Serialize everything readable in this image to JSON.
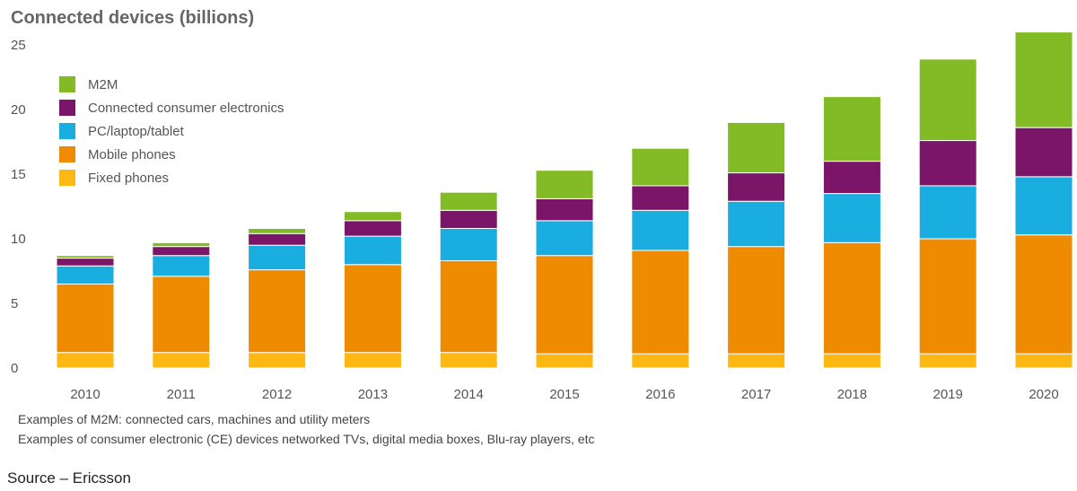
{
  "chart_data": {
    "type": "bar",
    "stacked": true,
    "title": "Connected devices (billions)",
    "xlabel": "",
    "ylabel": "",
    "ylim": [
      0,
      25
    ],
    "yticks": [
      0,
      5,
      10,
      15,
      20,
      25
    ],
    "grid": false,
    "legend_position": "top-left",
    "categories": [
      "2010",
      "2011",
      "2012",
      "2013",
      "2014",
      "2015",
      "2016",
      "2017",
      "2018",
      "2019",
      "2020"
    ],
    "series": [
      {
        "name": "Fixed phones",
        "color": "#fdb813",
        "values": [
          1.2,
          1.2,
          1.2,
          1.2,
          1.2,
          1.1,
          1.1,
          1.1,
          1.1,
          1.1,
          1.1
        ]
      },
      {
        "name": "Mobile phones",
        "color": "#ef8b00",
        "values": [
          5.3,
          5.9,
          6.4,
          6.8,
          7.1,
          7.6,
          8.0,
          8.3,
          8.6,
          8.9,
          9.2
        ]
      },
      {
        "name": "PC/laptop/tablet",
        "color": "#1aaee0",
        "values": [
          1.4,
          1.6,
          1.9,
          2.2,
          2.5,
          2.7,
          3.1,
          3.5,
          3.8,
          4.1,
          4.5
        ]
      },
      {
        "name": "Connected consumer electronics",
        "color": "#7a1568",
        "values": [
          0.6,
          0.7,
          0.9,
          1.2,
          1.4,
          1.7,
          1.9,
          2.2,
          2.5,
          3.5,
          3.8
        ]
      },
      {
        "name": "M2M",
        "color": "#82bb26",
        "values": [
          0.2,
          0.3,
          0.4,
          0.7,
          1.4,
          2.2,
          2.9,
          3.9,
          5.0,
          6.3,
          7.4
        ]
      }
    ]
  },
  "legend_order": [
    "M2M",
    "Connected consumer electronics",
    "PC/laptop/tablet",
    "Mobile phones",
    "Fixed phones"
  ],
  "notes": [
    "Examples of M2M: connected cars, machines and utility meters",
    "Examples of consumer electronic (CE) devices networked TVs, digital media boxes, Blu-ray players, etc"
  ],
  "source": "Source – Ericsson"
}
